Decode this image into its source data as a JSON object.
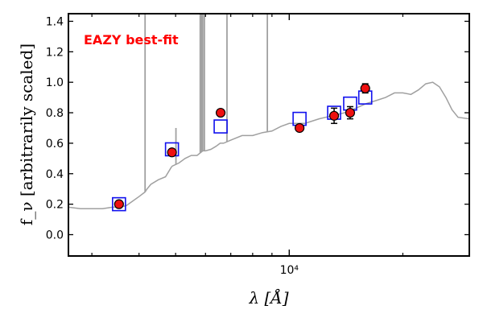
{
  "chart_data": {
    "type": "scatter",
    "xlabel": "λ [Å]",
    "ylabel": "f_ν [arbitrarily scaled]",
    "xscale": "log",
    "xlim": [
      2600,
      30000
    ],
    "ylim": [
      -0.14,
      1.45
    ],
    "grid": false,
    "yticks": [
      0.0,
      0.2,
      0.4,
      0.6,
      0.8,
      1.0,
      1.2,
      1.4
    ],
    "ytick_labels": [
      "0.0",
      "0.2",
      "0.4",
      "0.6",
      "0.8",
      "1.0",
      "1.2",
      "1.4"
    ],
    "xtick_label_value": 10000,
    "xtick_label": "10⁴",
    "annotation": "EAZY best-fit",
    "colors": {
      "template": "#a0a0a0",
      "model": "#1010ee",
      "observed": "#ee1010"
    },
    "series": [
      {
        "type": "line",
        "x": [
          2600,
          2800,
          3000,
          3200,
          3400,
          3550,
          3700,
          3850,
          4000,
          4100,
          4150,
          4200,
          4300,
          4500,
          4700,
          4863,
          4900,
          5100,
          5300,
          5500,
          5700,
          5900,
          6000,
          6200,
          6400,
          6563,
          6700,
          7000,
          7500,
          8000,
          8500,
          9000,
          9500,
          10000,
          11000,
          12000,
          13000,
          14000,
          15000,
          16000,
          17000,
          18000,
          19000,
          20000,
          21000,
          22000,
          23000,
          24000,
          25000,
          26000,
          27000,
          28000,
          30000
        ],
        "y": [
          0.18,
          0.17,
          0.17,
          0.17,
          0.18,
          0.18,
          0.19,
          0.22,
          0.25,
          0.27,
          0.28,
          0.3,
          0.33,
          0.36,
          0.38,
          0.44,
          0.45,
          0.47,
          0.5,
          0.52,
          0.52,
          0.55,
          0.55,
          0.56,
          0.58,
          0.6,
          0.6,
          0.62,
          0.65,
          0.65,
          0.67,
          0.68,
          0.71,
          0.73,
          0.73,
          0.76,
          0.78,
          0.8,
          0.83,
          0.86,
          0.88,
          0.9,
          0.93,
          0.93,
          0.92,
          0.95,
          0.99,
          1.0,
          0.97,
          0.9,
          0.82,
          0.77,
          0.76
        ]
      },
      {
        "type": "model-squares",
        "x": [
          3540,
          4890,
          6580,
          10650,
          13150,
          14500,
          15900
        ],
        "y": [
          0.2,
          0.56,
          0.71,
          0.76,
          0.8,
          0.86,
          0.9
        ]
      },
      {
        "type": "observed",
        "x": [
          3540,
          4890,
          6580,
          10650,
          13150,
          14500,
          15900
        ],
        "y": [
          0.2,
          0.54,
          0.8,
          0.7,
          0.78,
          0.8,
          0.96
        ],
        "yerr": [
          0.01,
          0.01,
          0.01,
          0.02,
          0.05,
          0.04,
          0.03
        ]
      }
    ],
    "emission_lines": [
      {
        "x": 4150,
        "y": 1.45
      },
      {
        "x": 5010,
        "y": 0.7
      },
      {
        "x": 5810,
        "y": 1.45
      },
      {
        "x": 5860,
        "y": 1.45
      },
      {
        "x": 5900,
        "y": 1.45
      },
      {
        "x": 5960,
        "y": 1.45
      },
      {
        "x": 6840,
        "y": 1.45
      },
      {
        "x": 8750,
        "y": 1.45
      }
    ]
  }
}
